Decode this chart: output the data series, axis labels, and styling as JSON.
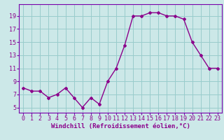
{
  "x": [
    0,
    1,
    2,
    3,
    4,
    5,
    6,
    7,
    8,
    9,
    10,
    11,
    12,
    13,
    14,
    15,
    16,
    17,
    18,
    19,
    20,
    21,
    22,
    23
  ],
  "y": [
    8.0,
    7.5,
    7.5,
    6.5,
    7.0,
    8.0,
    6.5,
    5.0,
    6.5,
    5.5,
    9.0,
    11.0,
    14.5,
    19.0,
    19.0,
    19.5,
    19.5,
    19.0,
    19.0,
    18.5,
    15.0,
    13.0,
    11.0,
    11.0
  ],
  "line_color": "#8b008b",
  "marker": "D",
  "marker_size": 2.0,
  "bg_color": "#cce8e8",
  "grid_color": "#99cccc",
  "xlabel": "Windchill (Refroidissement éolien,°C)",
  "xlabel_fontsize": 6.5,
  "ylabel_ticks": [
    5,
    7,
    9,
    11,
    13,
    15,
    17,
    19
  ],
  "xlim": [
    -0.5,
    23.5
  ],
  "ylim": [
    4.2,
    20.8
  ],
  "xtick_labels": [
    "0",
    "1",
    "2",
    "3",
    "4",
    "5",
    "6",
    "7",
    "8",
    "9",
    "10",
    "11",
    "12",
    "13",
    "14",
    "15",
    "16",
    "17",
    "18",
    "19",
    "20",
    "21",
    "22",
    "23"
  ],
  "tick_fontsize": 6.0,
  "spine_color": "#7700aa",
  "linewidth": 1.0
}
